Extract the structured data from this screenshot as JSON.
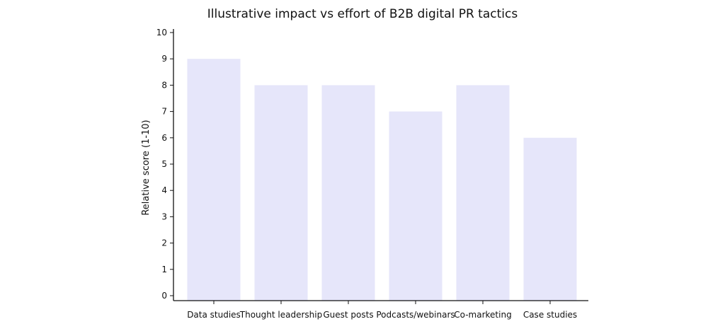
{
  "chart_data": {
    "type": "bar",
    "title": "Illustrative impact vs effort of B2B digital PR tactics",
    "xlabel": "",
    "ylabel": "Relative score (1-10)",
    "categories": [
      "Data studies",
      "Thought leadership",
      "Guest posts",
      "Podcasts/webinars",
      "Co-marketing",
      "Case studies"
    ],
    "values": [
      9,
      8,
      8,
      7,
      8,
      6
    ],
    "ylim": [
      0,
      10
    ],
    "yticks": [
      "0",
      "1",
      "2",
      "3",
      "4",
      "5",
      "6",
      "7",
      "8",
      "9",
      "10"
    ],
    "grid": false,
    "legend": "none",
    "bar_color": "#e6e6fa",
    "axis_color": "#111111"
  }
}
